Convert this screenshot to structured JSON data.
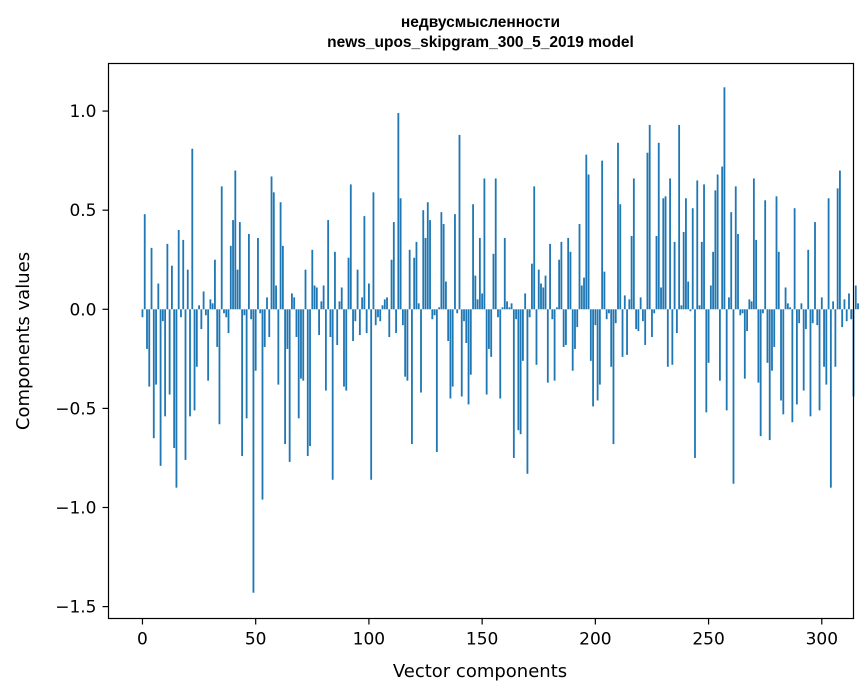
{
  "chart_data": {
    "type": "bar",
    "title": "недвусмысленности",
    "subtitle": "news_upos_skipgram_300_5_2019 model",
    "xlabel": "Vector components",
    "ylabel": "Components values",
    "xlim": [
      -15,
      314
    ],
    "ylim": [
      -1.56,
      1.24
    ],
    "xticks": [
      0,
      50,
      100,
      150,
      200,
      250,
      300
    ],
    "yticks": [
      -1.5,
      -1.0,
      -0.5,
      0.0,
      0.5,
      1.0
    ],
    "ytick_labels": [
      "−1.5",
      "−1.0",
      "−0.5",
      "0.0",
      "0.5",
      "1.0"
    ],
    "grid": false,
    "bar_color": "#1f77b4",
    "values": [
      -0.04,
      0.48,
      -0.2,
      -0.39,
      0.31,
      -0.65,
      -0.38,
      0.13,
      -0.79,
      -0.06,
      -0.54,
      0.33,
      -0.43,
      0.22,
      -0.7,
      -0.9,
      0.4,
      -0.04,
      0.35,
      -0.76,
      0.2,
      -0.54,
      0.81,
      -0.51,
      -0.29,
      0.02,
      -0.1,
      0.09,
      -0.03,
      -0.36,
      0.05,
      0.03,
      0.25,
      -0.19,
      -0.58,
      0.62,
      -0.02,
      -0.04,
      -0.12,
      0.32,
      0.45,
      0.7,
      0.2,
      0.44,
      -0.74,
      -0.03,
      -0.55,
      0.38,
      -0.05,
      -1.43,
      -0.31,
      0.36,
      -0.02,
      -0.96,
      -0.19,
      0.06,
      -0.14,
      0.67,
      0.59,
      0.12,
      -0.38,
      0.54,
      0.32,
      -0.68,
      -0.2,
      -0.77,
      0.08,
      0.06,
      -0.14,
      -0.55,
      -0.35,
      -0.36,
      0.2,
      -0.74,
      -0.69,
      0.3,
      0.12,
      0.11,
      -0.13,
      0.04,
      0.12,
      -0.41,
      0.45,
      -0.14,
      -0.86,
      0.29,
      -0.18,
      0.04,
      0.11,
      -0.39,
      -0.41,
      0.26,
      0.63,
      -0.16,
      -0.06,
      0.2,
      -0.13,
      0.06,
      0.47,
      -0.12,
      0.13,
      -0.86,
      0.59,
      -0.08,
      -0.04,
      -0.06,
      0.02,
      0.05,
      0.06,
      -0.14,
      0.25,
      0.44,
      -0.12,
      0.99,
      0.56,
      -0.08,
      -0.34,
      -0.36,
      0.3,
      -0.68,
      0.26,
      0.34,
      0.03,
      -0.42,
      0.5,
      0.36,
      0.54,
      0.45,
      -0.05,
      -0.03,
      -0.72,
      0.01,
      0.49,
      0.43,
      0.14,
      -0.16,
      -0.45,
      -0.39,
      0.48,
      -0.02,
      0.88,
      -0.44,
      -0.06,
      -0.17,
      -0.48,
      -0.33,
      0.53,
      0.17,
      0.05,
      0.36,
      0.08,
      0.66,
      -0.43,
      -0.2,
      -0.24,
      0.28,
      0.66,
      -0.04,
      -0.45,
      0.01,
      0.36,
      0.04,
      0.01,
      0.03,
      -0.75,
      -0.05,
      -0.61,
      -0.63,
      -0.26,
      0.08,
      -0.83,
      -0.04,
      0.23,
      0.62,
      -0.28,
      0.2,
      0.13,
      0.11,
      0.17,
      -0.37,
      0.33,
      -0.05,
      -0.36,
      0.01,
      0.25,
      0.34,
      -0.19,
      -0.18,
      0.36,
      0.29,
      -0.31,
      -0.2,
      -0.09,
      0.43,
      0.12,
      0.16,
      0.78,
      0.68,
      -0.26,
      -0.49,
      -0.08,
      -0.46,
      -0.38,
      0.75,
      0.19,
      -0.05,
      -0.02,
      -0.29,
      -0.68,
      -0.07,
      0.84,
      0.53,
      -0.24,
      0.07,
      -0.23,
      0.05,
      0.37,
      0.66,
      -0.1,
      -0.11,
      0.06,
      -0.06,
      -0.18,
      0.79,
      0.93,
      -0.14,
      -0.02,
      0.37,
      0.84,
      0.11,
      0.56,
      0.57,
      -0.29,
      0.66,
      -0.28,
      0.34,
      -0.12,
      0.93,
      0.02,
      0.39,
      0.56,
      0.14,
      -0.01,
      0.51,
      -0.75,
      0.65,
      0.02,
      0.34,
      0.63,
      -0.52,
      -0.27,
      0.12,
      0.29,
      0.6,
      0.68,
      -0.36,
      0.72,
      1.12,
      -0.51,
      0.06,
      0.49,
      -0.88,
      0.62,
      0.38,
      -0.03,
      -0.02,
      -0.35,
      -0.11,
      0.05,
      0.04,
      0.66,
      0.35,
      -0.37,
      -0.64,
      -0.02,
      0.55,
      -0.27,
      -0.66,
      -0.31,
      -0.19,
      0.57,
      0.29,
      -0.46,
      -0.53,
      0.11,
      0.03,
      0.01,
      -0.57,
      0.51,
      -0.48,
      -0.07,
      0.03,
      -0.41,
      -0.1,
      0.3,
      -0.54,
      -0.07,
      0.44,
      -0.08,
      -0.51,
      0.06,
      -0.29,
      -0.38,
      0.56,
      -0.9,
      0.04,
      -0.29,
      0.61,
      0.7,
      -0.09,
      0.05,
      -0.06,
      0.08,
      -0.05,
      -0.44,
      0.12,
      0.03
    ]
  }
}
